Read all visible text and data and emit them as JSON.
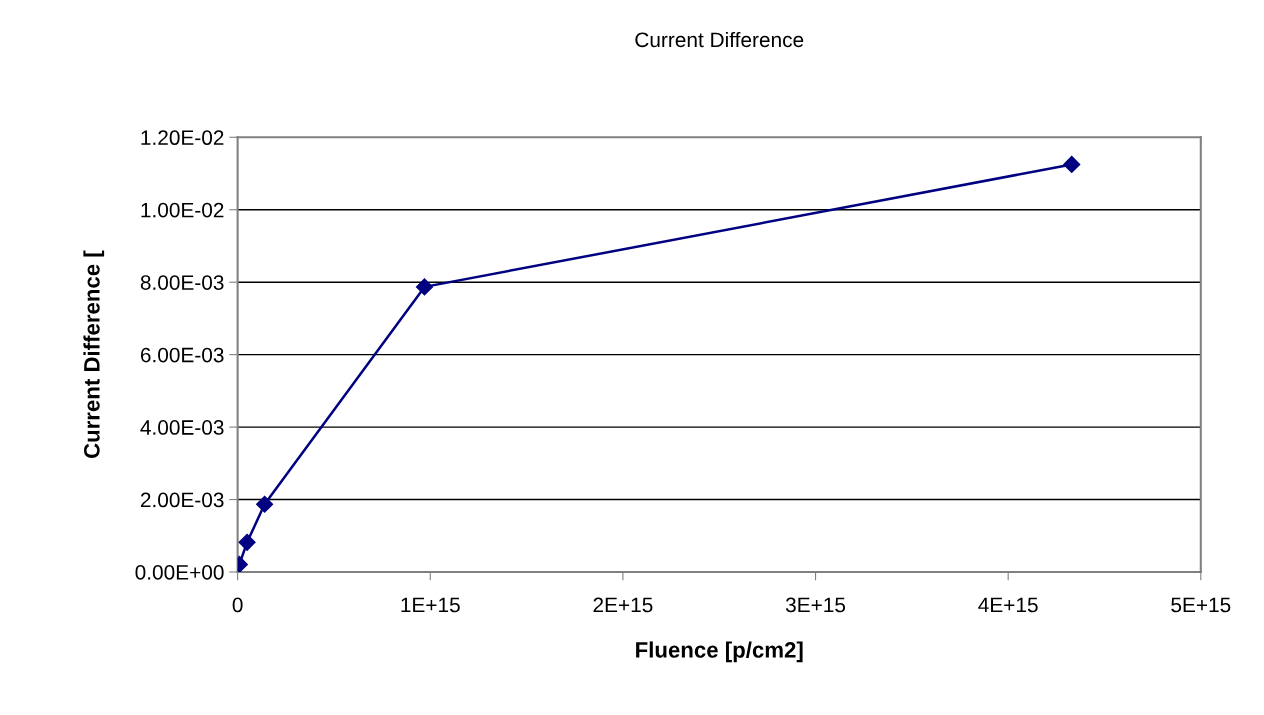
{
  "chart_data": {
    "type": "line",
    "title": "Current Difference",
    "xlabel": "Fluence [p/cm2]",
    "ylabel": "Current Difference [",
    "x": [
      9000000000000.0,
      49000000000000.0,
      140000000000000.0,
      970000000000000.0,
      4330000000000000.0
    ],
    "series": [
      {
        "color": "#000080",
        "values": [
          0.00021,
          0.00082,
          0.00187,
          0.00787,
          0.01125
        ]
      }
    ],
    "xlim": [
      0,
      5000000000000000.0
    ],
    "xticks": [
      0,
      {
        "value": 1000000000000000.0,
        "label": "1E+15"
      },
      {
        "value": 2000000000000000.0,
        "label": "2E+15"
      },
      {
        "value": 3000000000000000.0,
        "label": "3E+15"
      },
      {
        "value": 4000000000000000.0,
        "label": "4E+15"
      },
      {
        "value": 5000000000000000.0,
        "label": "5E+15"
      }
    ],
    "ylim": [
      0,
      0.012
    ],
    "yticks": [
      {
        "value": 0,
        "label": "0.00E+00"
      },
      {
        "value": 0.002,
        "label": "2.00E-03"
      },
      {
        "value": 0.004,
        "label": "4.00E-03"
      },
      {
        "value": 0.006,
        "label": "6.00E-03"
      },
      {
        "value": 0.008,
        "label": "8.00E-03"
      },
      {
        "value": 0.01,
        "label": "1.00E-02"
      },
      {
        "value": 0.012,
        "label": "1.20E-02"
      }
    ],
    "grid": "y",
    "legend": false,
    "marker": "diamond",
    "line_style": "solid"
  }
}
